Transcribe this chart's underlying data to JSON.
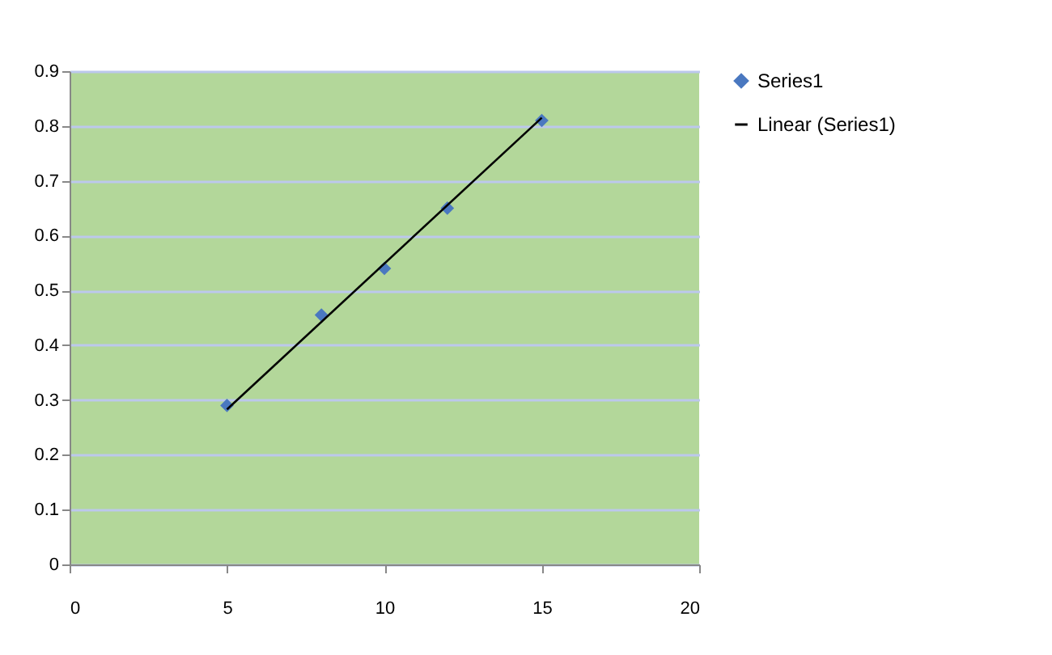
{
  "chart_data": {
    "type": "scatter",
    "series": [
      {
        "name": "Series1",
        "color": "#4a78c0",
        "marker": "diamond",
        "x": [
          5,
          8,
          10,
          12,
          15
        ],
        "values": [
          0.29,
          0.455,
          0.54,
          0.65,
          0.81
        ]
      },
      {
        "name": "Linear (Series1)",
        "type": "line",
        "color": "#000000",
        "line_style": "solid",
        "x": [
          5,
          15
        ],
        "values": [
          0.283,
          0.815
        ]
      }
    ],
    "xlim": [
      0,
      20
    ],
    "xticks": [
      0,
      5,
      10,
      15,
      20
    ],
    "ylim": [
      0,
      0.9
    ],
    "yticks": [
      0,
      0.1,
      0.2,
      0.3,
      0.4,
      0.5,
      0.6,
      0.7,
      0.8,
      0.9
    ],
    "grid": "y",
    "legend": "right"
  }
}
